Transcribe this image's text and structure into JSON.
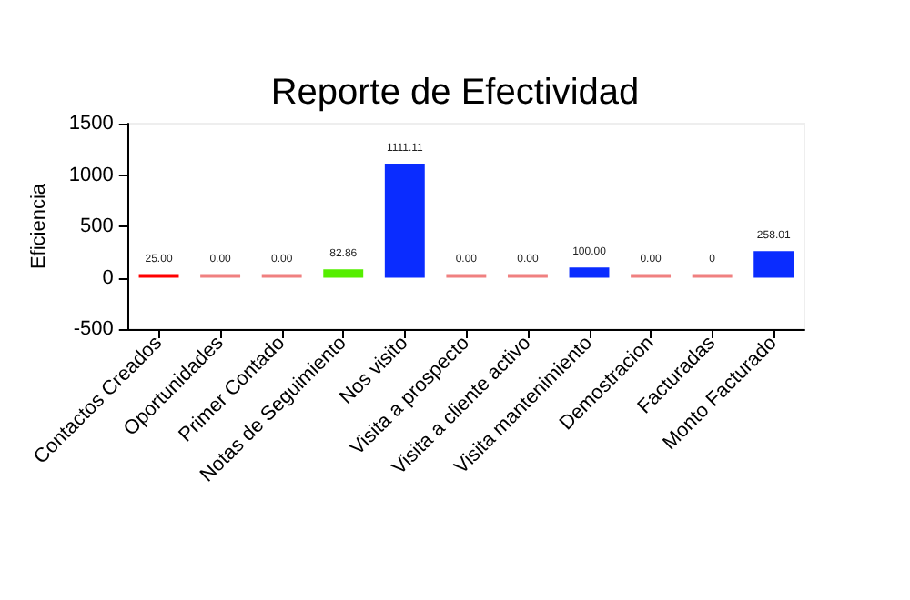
{
  "chart_data": {
    "type": "bar",
    "title": "Reporte de Efectividad",
    "ylabel": "Eficiencia",
    "categories": [
      "Contactos Creados",
      "Oportunidades",
      "Primer Contado",
      "Notas de Seguimiento",
      "Nos visito",
      "Visita a prospecto",
      "Visita a cliente activo",
      "Visita mantenimiento",
      "Demostracion",
      "Facturadas",
      "Monto Facturado"
    ],
    "values": [
      25,
      0,
      0,
      82.86,
      1111.11,
      0,
      0,
      100,
      0,
      0,
      258.01
    ],
    "value_labels": [
      "25.00",
      "0.00",
      "0.00",
      "82.86",
      "1111.11",
      "0.00",
      "0.00",
      "100.00",
      "0.00",
      "0",
      "258.01"
    ],
    "colors": [
      "#ff0000",
      "#f08080",
      "#f08080",
      "#55ee00",
      "#0a2cff",
      "#f08080",
      "#f08080",
      "#0a2cff",
      "#f08080",
      "#f08080",
      "#0a2cff"
    ],
    "ylim": [
      -500,
      1500
    ],
    "yticks": [
      -500,
      0,
      500,
      1000,
      1500
    ],
    "grid": false
  }
}
